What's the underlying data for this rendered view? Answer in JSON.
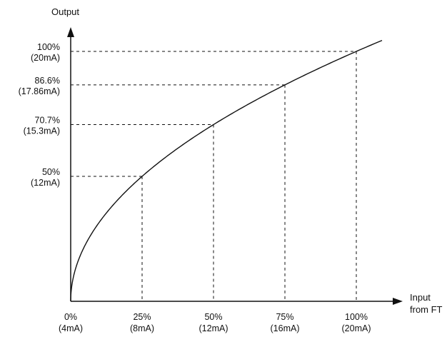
{
  "chart_data": {
    "type": "line",
    "title": "",
    "ylabel": "Output",
    "xlabel": [
      "Input",
      "from FT"
    ],
    "xlim": [
      0,
      100
    ],
    "ylim": [
      0,
      100
    ],
    "grid": false,
    "x_ticks": [
      {
        "value": 0,
        "label": "0%",
        "sublabel": "(4mA)"
      },
      {
        "value": 25,
        "label": "25%",
        "sublabel": "(8mA)"
      },
      {
        "value": 50,
        "label": "50%",
        "sublabel": "(12mA)"
      },
      {
        "value": 75,
        "label": "75%",
        "sublabel": "(16mA)"
      },
      {
        "value": 100,
        "label": "100%",
        "sublabel": "(20mA)"
      }
    ],
    "y_ticks": [
      {
        "value": 50,
        "label": "50%",
        "sublabel": "(12mA)"
      },
      {
        "value": 70.7,
        "label": "70.7%",
        "sublabel": "(15.3mA)"
      },
      {
        "value": 86.6,
        "label": "86.6%",
        "sublabel": "(17.86mA)"
      },
      {
        "value": 100,
        "label": "100%",
        "sublabel": "(20mA)"
      }
    ],
    "guides": [
      {
        "x": 25,
        "y": 50
      },
      {
        "x": 50,
        "y": 70.7
      },
      {
        "x": 75,
        "y": 86.6
      },
      {
        "x": 100,
        "y": 100
      }
    ],
    "curve": {
      "relation": "y = 10 * sqrt(x)",
      "x_end": 109
    },
    "colors": {
      "line": "#111111",
      "axis": "#111111",
      "text": "#111111"
    }
  }
}
